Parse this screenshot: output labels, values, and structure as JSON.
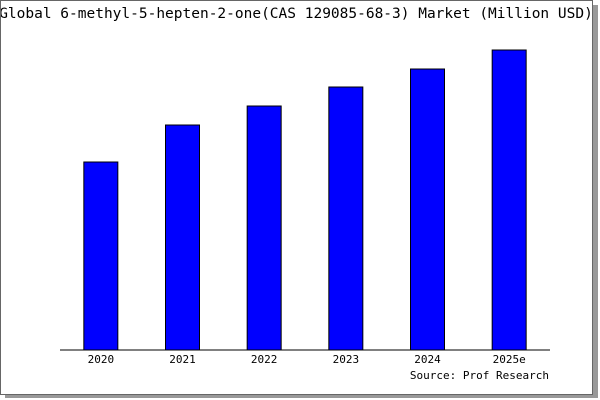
{
  "chart_data": {
    "type": "bar",
    "title": "Global 6-methyl-5-hepten-2-one(CAS 129085-68-3) Market (Million USD)",
    "source": "Source: Prof Research",
    "categories": [
      "2020",
      "2021",
      "2022",
      "2023",
      "2024",
      "2025e"
    ],
    "values": [
      188,
      225,
      244,
      263,
      281,
      300
    ],
    "color": "#0000ff",
    "ylim": [
      0,
      310
    ]
  }
}
